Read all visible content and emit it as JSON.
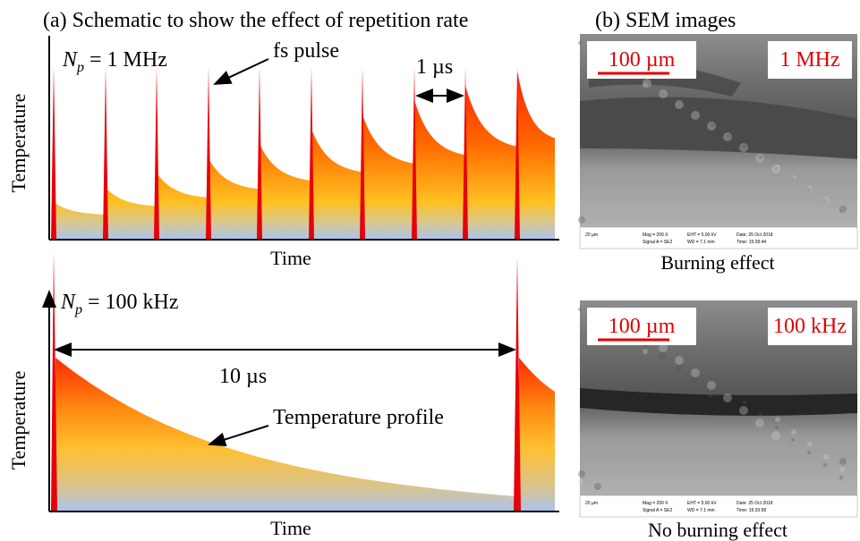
{
  "panel_a": {
    "title": "(a) Schematic to show the effect of repetition rate",
    "top": {
      "rate_label": {
        "symbol": "N",
        "subscript": "p",
        "text": "= 1 MHz"
      },
      "pulse_label": "fs pulse",
      "period_label": "1 µs",
      "y_label": "Temperature",
      "x_label": "Time"
    },
    "bottom": {
      "rate_label": {
        "symbol": "N",
        "subscript": "p",
        "text": "= 100 kHz"
      },
      "period_label": "10 µs",
      "profile_label": "Temperature profile",
      "y_label": "Temperature",
      "x_label": "Time"
    }
  },
  "panel_b": {
    "title": "(b) SEM images",
    "images": [
      {
        "scale": "100 µm",
        "rate": "1 MHz",
        "caption": "Burning effect",
        "footer": [
          "20 µm",
          "Mag = 200 X",
          "EHT = 5.00 kV",
          "Date: 25 Oct 2018",
          "Signal A = SE2",
          "WD = 7.1 mm",
          "Time: 15:28:44"
        ]
      },
      {
        "scale": "100 µm",
        "rate": "100 kHz",
        "caption": "No burning effect",
        "footer": [
          "20 µm",
          "Mag = 200 X",
          "EHT = 5.00 kV",
          "Date: 25 Oct 2018",
          "Signal A = SE2",
          "WD = 7.1 mm",
          "Time: 15:33:58"
        ]
      }
    ]
  }
}
